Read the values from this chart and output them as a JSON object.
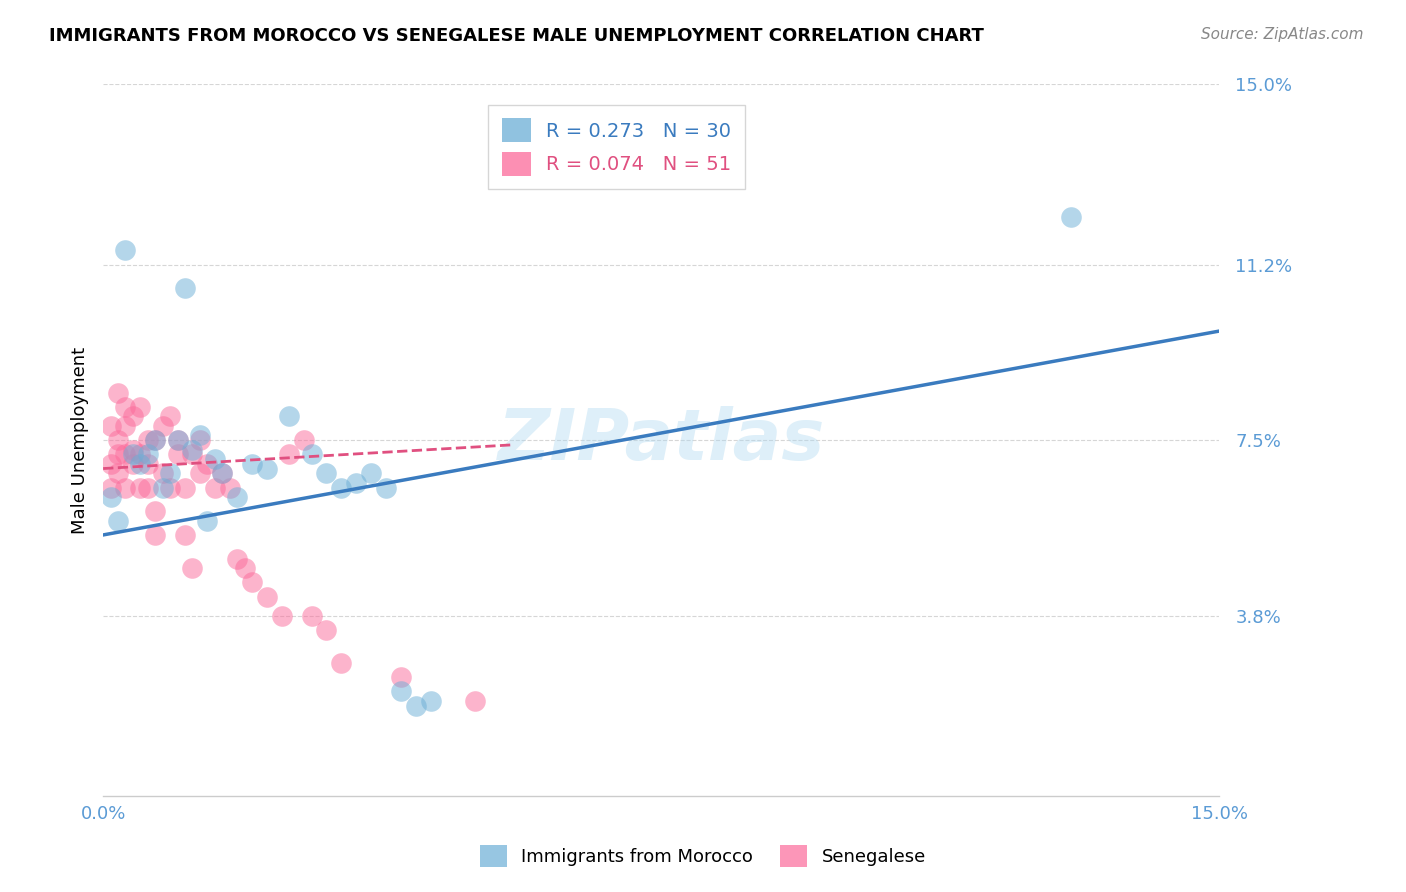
{
  "title": "IMMIGRANTS FROM MOROCCO VS SENEGALESE MALE UNEMPLOYMENT CORRELATION CHART",
  "source": "Source: ZipAtlas.com",
  "ylabel": "Male Unemployment",
  "x_min": 0.0,
  "x_max": 0.15,
  "y_min": 0.0,
  "y_max": 0.15,
  "y_ticks": [
    0.038,
    0.075,
    0.112,
    0.15
  ],
  "y_tick_labels": [
    "3.8%",
    "7.5%",
    "11.2%",
    "15.0%"
  ],
  "watermark": "ZIPatlas",
  "bottom_legend": [
    "Immigrants from Morocco",
    "Senegalese"
  ],
  "blue_color": "#6baed6",
  "pink_color": "#fb6a9a",
  "blue_line_color": "#3a7bbf",
  "pink_line_color": "#e05080",
  "axis_label_color": "#5b9bd5",
  "grid_color": "#cccccc",
  "background_color": "#ffffff",
  "morocco_x": [
    0.001,
    0.002,
    0.003,
    0.004,
    0.005,
    0.006,
    0.007,
    0.008,
    0.009,
    0.01,
    0.011,
    0.012,
    0.013,
    0.014,
    0.015,
    0.016,
    0.018,
    0.02,
    0.022,
    0.025,
    0.028,
    0.03,
    0.032,
    0.034,
    0.036,
    0.038,
    0.04,
    0.042,
    0.044,
    0.13
  ],
  "morocco_y": [
    0.063,
    0.058,
    0.115,
    0.072,
    0.07,
    0.072,
    0.075,
    0.065,
    0.068,
    0.075,
    0.107,
    0.073,
    0.076,
    0.058,
    0.071,
    0.068,
    0.063,
    0.07,
    0.069,
    0.08,
    0.072,
    0.068,
    0.065,
    0.066,
    0.068,
    0.065,
    0.022,
    0.019,
    0.02,
    0.122
  ],
  "senegalese_x": [
    0.001,
    0.001,
    0.001,
    0.002,
    0.002,
    0.002,
    0.002,
    0.003,
    0.003,
    0.003,
    0.003,
    0.004,
    0.004,
    0.004,
    0.005,
    0.005,
    0.005,
    0.006,
    0.006,
    0.006,
    0.007,
    0.007,
    0.007,
    0.008,
    0.008,
    0.009,
    0.009,
    0.01,
    0.01,
    0.011,
    0.011,
    0.012,
    0.012,
    0.013,
    0.013,
    0.014,
    0.015,
    0.016,
    0.017,
    0.018,
    0.019,
    0.02,
    0.022,
    0.024,
    0.025,
    0.027,
    0.028,
    0.03,
    0.032,
    0.04,
    0.05
  ],
  "senegalese_y": [
    0.065,
    0.07,
    0.078,
    0.075,
    0.068,
    0.072,
    0.085,
    0.082,
    0.078,
    0.072,
    0.065,
    0.08,
    0.073,
    0.07,
    0.082,
    0.072,
    0.065,
    0.075,
    0.07,
    0.065,
    0.055,
    0.06,
    0.075,
    0.068,
    0.078,
    0.065,
    0.08,
    0.072,
    0.075,
    0.065,
    0.055,
    0.048,
    0.072,
    0.068,
    0.075,
    0.07,
    0.065,
    0.068,
    0.065,
    0.05,
    0.048,
    0.045,
    0.042,
    0.038,
    0.072,
    0.075,
    0.038,
    0.035,
    0.028,
    0.025,
    0.02
  ],
  "blue_line_x0": 0.0,
  "blue_line_y0": 0.055,
  "blue_line_x1": 0.15,
  "blue_line_y1": 0.098,
  "pink_line_x0": 0.0,
  "pink_line_y0": 0.069,
  "pink_line_x1": 0.055,
  "pink_line_y1": 0.074
}
